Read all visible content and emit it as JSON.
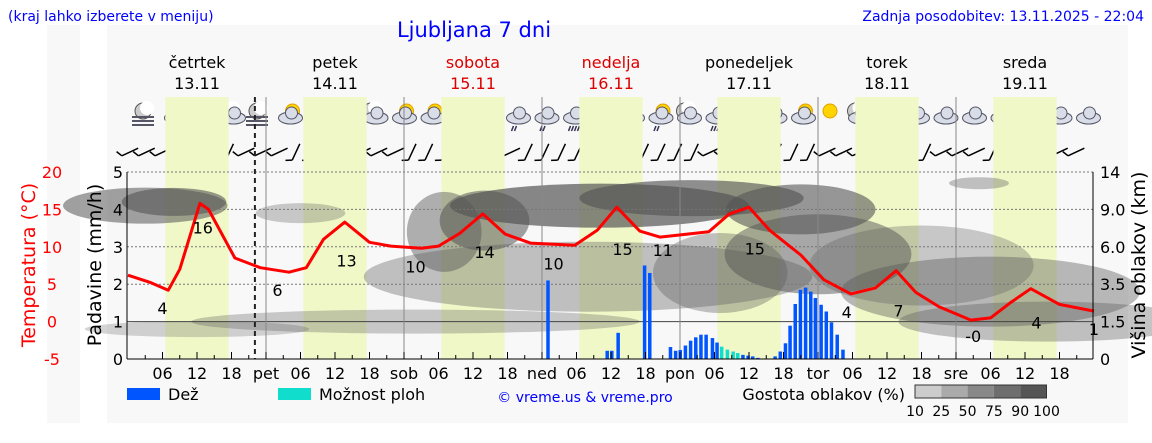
{
  "header": {
    "hint": "(kraj lahko izberete v meniju)",
    "title": "Ljubljana 7 dni",
    "updated": "Zadnja posodobitev: 13.11.2025 - 22:04"
  },
  "days": [
    {
      "name": "četrtek",
      "date": "13.11",
      "weekend": false
    },
    {
      "name": "petek",
      "date": "14.11",
      "weekend": false
    },
    {
      "name": "sobota",
      "date": "15.11",
      "weekend": true
    },
    {
      "name": "nedelja",
      "date": "16.11",
      "weekend": true
    },
    {
      "name": "ponedeljek",
      "date": "17.11",
      "weekend": false
    },
    {
      "name": "torek",
      "date": "18.11",
      "weekend": false
    },
    {
      "name": "sreda",
      "date": "19.11",
      "weekend": false
    }
  ],
  "weather_icons": [
    "moon-fog",
    "sun-cloud",
    "sun",
    "moon-cloud",
    "moon-fog",
    "sun-cloud",
    "sun-cloud",
    "cloud",
    "moon-cloud",
    "sun-cloud",
    "sun-cloud",
    "moon",
    "moon-rain",
    "cloud-rain",
    "cloud-rain",
    "cloud-heavy-rain",
    "cloud-rain",
    "sun-cloud-rain",
    "sun-cloud-rain",
    "moon-cloud",
    "cloud-heavy-rain",
    "cloud-heavy-rain",
    "moon-cloud",
    "sun-cloud",
    "sun",
    "moon-cloud",
    "cloud",
    "cloud",
    "cloud",
    "cloud",
    "cloud",
    "cloud",
    "cloud",
    "cloud"
  ],
  "colors": {
    "temperature": "#ff0000",
    "rain": "#0055ff",
    "showers": "#11ddcc",
    "daylight": "#f0f8c8",
    "accent_blue": "#0000ff",
    "weekend": "#dd0000"
  },
  "chart_data": {
    "type": "line+bar",
    "x_unit": "hours since Thu 13.11 00:00",
    "x_ticks": [
      "06",
      "12",
      "18",
      "pet",
      "06",
      "12",
      "18",
      "sob",
      "06",
      "12",
      "18",
      "ned",
      "06",
      "12",
      "18",
      "pon",
      "06",
      "12",
      "18",
      "tor",
      "06",
      "12",
      "18",
      "sre",
      "06",
      "12",
      "18"
    ],
    "now_marker_hour": 22.07,
    "left_axis_temp": {
      "label": "Temperatura (°C)",
      "ticks": [
        "20",
        "15",
        "10",
        "5",
        "0",
        "-5"
      ],
      "range": [
        -5,
        20
      ]
    },
    "left_axis_precip": {
      "label": "Padavine (mm/h)",
      "ticks": [
        "5",
        "4",
        "3",
        "2",
        "1",
        "0"
      ],
      "range": [
        0,
        5
      ]
    },
    "right_axis": {
      "label": "Višina oblakov (km)",
      "ticks": [
        "14",
        "9.0",
        "6.0",
        "3.5",
        "1.5",
        "0"
      ]
    },
    "temperature": {
      "hours": [
        0,
        4,
        7,
        9,
        12.5,
        14,
        18.6,
        23,
        28,
        31,
        34,
        37.7,
        42,
        45.7,
        51,
        54,
        57.7,
        61.7,
        65.6,
        70,
        77.7,
        81.6,
        85,
        89,
        92.5,
        101,
        104.6,
        108,
        111.6,
        117,
        121,
        125.7,
        130,
        133.6,
        137,
        141,
        146.6,
        150,
        153.4,
        157,
        162,
        168
      ],
      "values": [
        6.2,
        5.2,
        4.2,
        7,
        15.8,
        15,
        8.5,
        7.2,
        6.6,
        7.2,
        11,
        13.3,
        10.6,
        10.1,
        9.8,
        10.1,
        11.8,
        14.4,
        11.7,
        10.5,
        10.2,
        12.2,
        15.3,
        12.1,
        11.3,
        12,
        14.4,
        15.3,
        12.2,
        8.9,
        5.6,
        3.7,
        4.5,
        6.8,
        3.9,
        2,
        0.2,
        0.5,
        2.5,
        4.4,
        2.3,
        1.4
      ]
    },
    "temperature_labels": [
      {
        "hour": 6,
        "value": "4",
        "pos": "below"
      },
      {
        "hour": 13,
        "value": "16",
        "pos": "below"
      },
      {
        "hour": 26,
        "value": "6",
        "pos": "below"
      },
      {
        "hour": 38,
        "value": "13",
        "pos": "below"
      },
      {
        "hour": 50,
        "value": "10",
        "pos": "below"
      },
      {
        "hour": 62,
        "value": "14",
        "pos": "below"
      },
      {
        "hour": 74,
        "value": "10",
        "pos": "below"
      },
      {
        "hour": 86,
        "value": "15",
        "pos": "below"
      },
      {
        "hour": 93,
        "value": "11",
        "pos": "below"
      },
      {
        "hour": 109,
        "value": "15",
        "pos": "below"
      },
      {
        "hour": 125,
        "value": "4",
        "pos": "below"
      },
      {
        "hour": 134,
        "value": "7",
        "pos": "below"
      },
      {
        "hour": 147,
        "value": "-0",
        "pos": "below"
      },
      {
        "hour": 158,
        "value": "4",
        "pos": "below"
      },
      {
        "hour": 168,
        "value": "1",
        "pos": "below"
      }
    ],
    "precipitation": {
      "rain": [
        [
          73,
          2.1
        ],
        [
          83.3,
          0.22
        ],
        [
          84.1,
          0.22
        ],
        [
          85.2,
          0.7
        ],
        [
          89.8,
          2.5
        ],
        [
          90.7,
          2.3
        ],
        [
          94.3,
          0.32
        ],
        [
          95.2,
          0.22
        ],
        [
          96,
          0.24
        ],
        [
          96.9,
          0.36
        ],
        [
          97.8,
          0.49
        ],
        [
          98.7,
          0.58
        ],
        [
          99.6,
          0.65
        ],
        [
          100.5,
          0.65
        ],
        [
          101.6,
          0.56
        ],
        [
          102.4,
          0.44
        ],
        [
          106.9,
          0.11
        ],
        [
          107.8,
          0.09
        ],
        [
          108.6,
          0.07
        ],
        [
          109.5,
          0.03
        ],
        [
          112.5,
          0.07
        ],
        [
          113.4,
          0.2
        ],
        [
          114.3,
          0.42
        ],
        [
          115.1,
          0.89
        ],
        [
          116,
          1.47
        ],
        [
          116.9,
          1.85
        ],
        [
          117.8,
          1.91
        ],
        [
          118.7,
          1.8
        ],
        [
          119.5,
          1.63
        ],
        [
          120.5,
          1.45
        ],
        [
          121.4,
          1.27
        ],
        [
          122.3,
          0.98
        ],
        [
          123.3,
          0.65
        ],
        [
          124.3,
          0.25
        ]
      ],
      "showers": [
        [
          103.2,
          0.33
        ],
        [
          104.2,
          0.25
        ],
        [
          105.2,
          0.2
        ],
        [
          106,
          0.16
        ]
      ]
    },
    "legend": {
      "rain": "Dež",
      "showers": "Možnost ploh",
      "copyright": "© vreme.us & vreme.pro",
      "cloud_density": "Gostota oblakov (%)",
      "cloud_scale": [
        "10",
        "25",
        "50",
        "75",
        "90",
        "100"
      ]
    }
  }
}
